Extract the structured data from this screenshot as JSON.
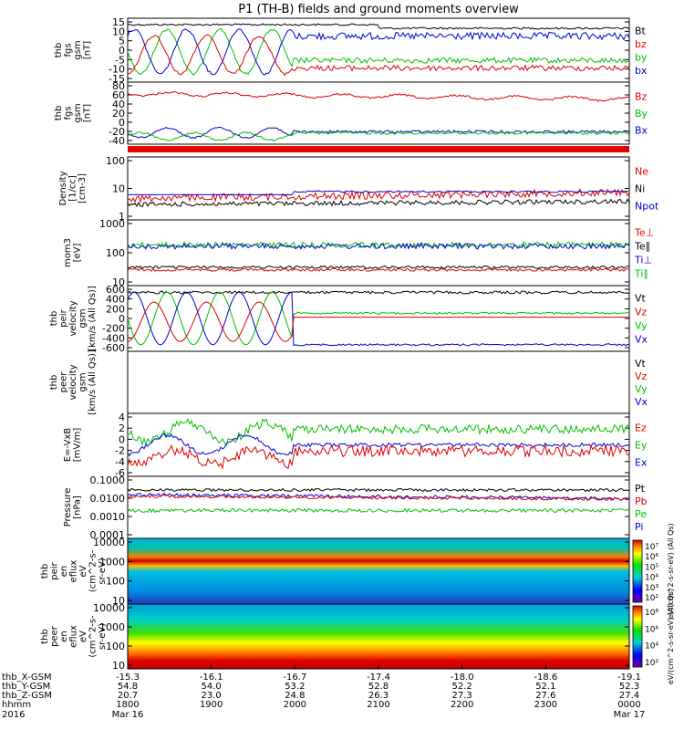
{
  "title": "P1 (TH-B) fields and ground moments overview",
  "chart_data": {
    "type": "line",
    "time_axis": {
      "ticks": [
        "1800",
        "1900",
        "2000",
        "2100",
        "2200",
        "2300",
        "0000"
      ],
      "ephemeris": [
        {
          "label": "thb_X-GSM",
          "values": [
            "-15.3",
            "-16.1",
            "-16.7",
            "-17.4",
            "-18.0",
            "-18.6",
            "-19.1"
          ]
        },
        {
          "label": "thb_Y-GSM",
          "values": [
            "54.8",
            "54.0",
            "53.2",
            "52.8",
            "52.2",
            "52.1",
            "52.3"
          ]
        },
        {
          "label": "thb_Z-GSM",
          "values": [
            "20.7",
            "23.0",
            "24.8",
            "26.3",
            "27.3",
            "27.6",
            "27.4"
          ]
        },
        {
          "label": "hhmm",
          "values": [
            "1800",
            "1900",
            "2000",
            "2100",
            "2200",
            "2300",
            "0000"
          ]
        }
      ],
      "date_row": {
        "year": "2016",
        "start": "Mar 16",
        "end": "Mar 17"
      }
    },
    "panels": [
      {
        "ylabel": [
          "thb",
          "fgs",
          "gsm",
          "[nT]"
        ],
        "yticks": [
          "15",
          "10",
          "5",
          "0",
          "-5",
          "-10",
          "-15"
        ],
        "legend": [
          {
            "label": "Bt",
            "color": "#000000"
          },
          {
            "label": "bz",
            "color": "#e00000"
          },
          {
            "label": "by",
            "color": "#00c000"
          },
          {
            "label": "bx",
            "color": "#0000d0"
          }
        ]
      },
      {
        "ylabel": [
          "thb",
          "fgs",
          "gsm",
          "[nT]"
        ],
        "yticks": [
          "80",
          "60",
          "40",
          "20",
          "0",
          "-20",
          "-40"
        ],
        "legend": [
          {
            "label": "Bz",
            "color": "#e00000"
          },
          {
            "label": "By",
            "color": "#00c000"
          },
          {
            "label": "Bx",
            "color": "#0000d0"
          }
        ]
      },
      {
        "ylabel": [
          "Density",
          "[1/cc]",
          "[cm-3]"
        ],
        "yticks": [
          "100",
          "10",
          "1"
        ],
        "legend": [
          {
            "label": "Ne",
            "color": "#e00000"
          },
          {
            "label": "Ni",
            "color": "#000000"
          },
          {
            "label": "Npot",
            "color": "#0000d0"
          }
        ]
      },
      {
        "ylabel": [
          "mom3",
          "[eV]"
        ],
        "yticks": [
          "1000",
          "100",
          "10"
        ],
        "legend": [
          {
            "label": "Te⊥",
            "color": "#e00000"
          },
          {
            "label": "Te∥",
            "color": "#000000"
          },
          {
            "label": "Ti⊥",
            "color": "#0000d0"
          },
          {
            "label": "Ti∥",
            "color": "#00c000"
          }
        ]
      },
      {
        "ylabel": [
          "thb",
          "peir",
          "velocity",
          "gsm",
          "[km/s (All Qs)]"
        ],
        "yticks": [
          "600",
          "400",
          "200",
          "0",
          "-200",
          "-400",
          "-600"
        ],
        "legend": [
          {
            "label": "Vt",
            "color": "#000000"
          },
          {
            "label": "Vz",
            "color": "#e00000"
          },
          {
            "label": "Vy",
            "color": "#00c000"
          },
          {
            "label": "Vx",
            "color": "#0000d0"
          }
        ]
      },
      {
        "ylabel": [
          "thb",
          "peer",
          "velocity",
          "gsm",
          "[km/s (All Qs)]"
        ],
        "yticks": [],
        "legend": [
          {
            "label": "Vt",
            "color": "#000000"
          },
          {
            "label": "Vz",
            "color": "#e00000"
          },
          {
            "label": "Vy",
            "color": "#00c000"
          },
          {
            "label": "Vx",
            "color": "#0000d0"
          }
        ]
      },
      {
        "ylabel": [
          "E=-VxB",
          "[mV/m]"
        ],
        "yticks": [
          "4",
          "2",
          "0",
          "-2",
          "-4",
          "-6"
        ],
        "legend": [
          {
            "label": "Ez",
            "color": "#e00000"
          },
          {
            "label": "Ey",
            "color": "#00c000"
          },
          {
            "label": "Ex",
            "color": "#0000d0"
          }
        ]
      },
      {
        "ylabel": [
          "Pressure",
          "[nPa]"
        ],
        "yticks": [
          "0.1000",
          "0.0100",
          "0.0010",
          "0.0001"
        ],
        "legend": [
          {
            "label": "Pt",
            "color": "#000000"
          },
          {
            "label": "Pb",
            "color": "#e00000"
          },
          {
            "label": "Pe",
            "color": "#00c000"
          },
          {
            "label": "Pi",
            "color": "#0000d0"
          }
        ]
      },
      {
        "ylabel": [
          "thb",
          "peir",
          "en",
          "eflux",
          "eV",
          "(cm^2-s-",
          "sr-eV)"
        ],
        "yticks": [
          "10000",
          "1000",
          "100",
          "10"
        ],
        "colorbar": {
          "ticks": [
            "10⁷",
            "10⁶",
            "10⁵",
            "10⁴",
            "10³",
            "10²"
          ],
          "label": "eV/(cm^2-s-sr-eV) (All Qs)"
        }
      },
      {
        "ylabel": [
          "thb",
          "peer",
          "en",
          "eflux",
          "eV",
          "(cm^2-s-",
          "sr-eV)"
        ],
        "yticks": [
          "10000",
          "1000",
          "100",
          "10"
        ],
        "colorbar": {
          "ticks": [
            "10⁸",
            "10⁶",
            "10⁴",
            "10²"
          ],
          "label": "eV/(cm^2-s-sr-eV) (All Qs)"
        }
      }
    ]
  }
}
